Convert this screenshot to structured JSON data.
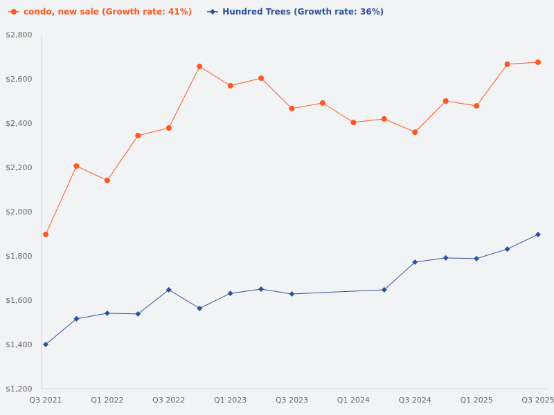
{
  "chart_data": {
    "type": "line",
    "categories": [
      "Q3 2021",
      "Q4 2021",
      "Q1 2022",
      "Q2 2022",
      "Q3 2022",
      "Q4 2022",
      "Q1 2023",
      "Q2 2023",
      "Q3 2023",
      "Q4 2023",
      "Q1 2024",
      "Q2 2024",
      "Q3 2024",
      "Q4 2024",
      "Q1 2025",
      "Q2 2025",
      "Q3 2025"
    ],
    "x_tick_labels": [
      "Q3 2021",
      "Q1 2022",
      "Q3 2022",
      "Q1 2023",
      "Q3 2023",
      "Q1 2024",
      "Q3 2024",
      "Q1 2025",
      "Q3 2025"
    ],
    "y_tick_labels": [
      "$1,200",
      "$1,400",
      "$1,600",
      "$1,800",
      "$2,000",
      "$2,200",
      "$2,400",
      "$2,600",
      "$2,800"
    ],
    "ylim": [
      1200,
      2800
    ],
    "grid": false,
    "legend_position": "top-left",
    "series": [
      {
        "name": "condo, new sale (Growth rate: 41%)",
        "color": "#ff5722",
        "marker": "circle",
        "values": [
          1897,
          2206,
          2141,
          2344,
          2378,
          2656,
          2569,
          2603,
          2466,
          2491,
          2403,
          2419,
          2359,
          2500,
          2478,
          2666,
          2675
        ]
      },
      {
        "name": "Hundred Trees (Growth rate: 36%)",
        "color": "#2a52a0",
        "marker": "diamond",
        "values": [
          1400,
          1516,
          1541,
          1538,
          1647,
          1563,
          1631,
          1650,
          1628,
          null,
          null,
          1647,
          1772,
          1791,
          1788,
          1831,
          1897
        ]
      }
    ]
  }
}
